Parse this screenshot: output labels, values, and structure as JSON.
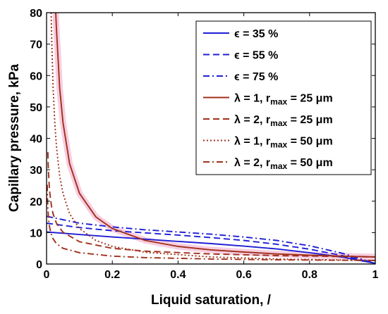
{
  "chart_data": {
    "type": "line",
    "xlabel": "Liquid saturation, /",
    "ylabel": "Capillary pressure, kPa",
    "xlim": [
      0,
      1
    ],
    "ylim": [
      0,
      80
    ],
    "xticks": [
      "0",
      "0.2",
      "0.4",
      "0.6",
      "0.8",
      "1"
    ],
    "yticks": [
      "0",
      "10",
      "20",
      "30",
      "40",
      "50",
      "60",
      "70",
      "80"
    ],
    "grid": false,
    "legend_position": "top-right",
    "colors": {
      "blue": "#1f1fd6",
      "red": "#a0301b",
      "band": "#f6c6dc"
    },
    "series": [
      {
        "legend": [
          "ϵ = 35 %"
        ],
        "color": "#1f1fd6",
        "dash": "solid",
        "x": [
          0,
          0.1,
          0.2,
          0.3,
          0.4,
          0.5,
          0.6,
          0.7,
          0.8,
          0.9,
          1.0
        ],
        "y": [
          10.2,
          9.4,
          8.6,
          7.9,
          7.2,
          6.5,
          5.7,
          4.8,
          3.6,
          2.2,
          0.2
        ]
      },
      {
        "legend": [
          "ϵ = 55 %"
        ],
        "color": "#1f1fd6",
        "dash": "dashed",
        "x": [
          0,
          0.1,
          0.2,
          0.3,
          0.4,
          0.5,
          0.6,
          0.7,
          0.8,
          0.9,
          1.0
        ],
        "y": [
          13.0,
          11.6,
          10.6,
          9.9,
          9.2,
          8.4,
          7.5,
          6.3,
          4.7,
          2.7,
          0.2
        ]
      },
      {
        "legend": [
          "ϵ = 75 %"
        ],
        "color": "#1f1fd6",
        "dash": "dashdot",
        "x": [
          0,
          0.1,
          0.2,
          0.3,
          0.4,
          0.5,
          0.6,
          0.7,
          0.8,
          0.9,
          1.0
        ],
        "y": [
          15.2,
          13.0,
          11.8,
          10.9,
          10.2,
          9.5,
          8.6,
          7.5,
          5.8,
          3.4,
          0.2
        ]
      },
      {
        "legend": [
          "λ = 1, r",
          "max",
          " = 25 μm"
        ],
        "color": "#a0301b",
        "dash": "solid",
        "x": [
          0.028,
          0.03,
          0.04,
          0.05,
          0.07,
          0.1,
          0.15,
          0.2,
          0.3,
          0.4,
          0.5,
          0.6,
          0.7,
          0.8,
          0.9,
          1.0
        ],
        "y": [
          80,
          75,
          56,
          45,
          32,
          22.5,
          15,
          11.3,
          7.5,
          5.6,
          4.5,
          3.8,
          3.2,
          2.8,
          2.5,
          2.25
        ]
      },
      {
        "legend": [
          "λ = 2, r",
          "max",
          " = 25 μm"
        ],
        "color": "#a0301b",
        "dash": "dashed",
        "x": [
          0.004,
          0.005,
          0.006,
          0.008,
          0.01,
          0.015,
          0.02,
          0.03,
          0.05,
          0.1,
          0.2,
          0.3,
          0.5,
          0.7,
          1.0
        ],
        "y": [
          35.6,
          31.8,
          29.0,
          25.2,
          22.5,
          18.4,
          15.9,
          13.0,
          10.1,
          7.1,
          5.0,
          4.1,
          3.2,
          2.7,
          2.25
        ]
      },
      {
        "legend": [
          "λ = 1, r",
          "max",
          " = 50 μm"
        ],
        "color": "#a0301b",
        "dash": "dotted",
        "x": [
          0.014,
          0.016,
          0.02,
          0.025,
          0.03,
          0.04,
          0.05,
          0.07,
          0.1,
          0.15,
          0.2,
          0.3,
          0.5,
          0.7,
          1.0
        ],
        "y": [
          80,
          70,
          56,
          45,
          37.5,
          28,
          22.5,
          16,
          11.3,
          7.5,
          5.6,
          3.75,
          2.25,
          1.6,
          1.13
        ]
      },
      {
        "legend": [
          "λ = 2, r",
          "max",
          " = 50 μm"
        ],
        "color": "#a0301b",
        "dash": "dashdot",
        "x": [
          0.002,
          0.003,
          0.004,
          0.006,
          0.008,
          0.01,
          0.015,
          0.02,
          0.03,
          0.05,
          0.1,
          0.2,
          0.3,
          0.5,
          0.7,
          1.0
        ],
        "y": [
          25.2,
          20.5,
          17.8,
          14.5,
          12.6,
          11.3,
          9.2,
          8.0,
          6.5,
          5.0,
          3.6,
          2.5,
          2.05,
          1.6,
          1.35,
          1.13
        ]
      }
    ]
  }
}
